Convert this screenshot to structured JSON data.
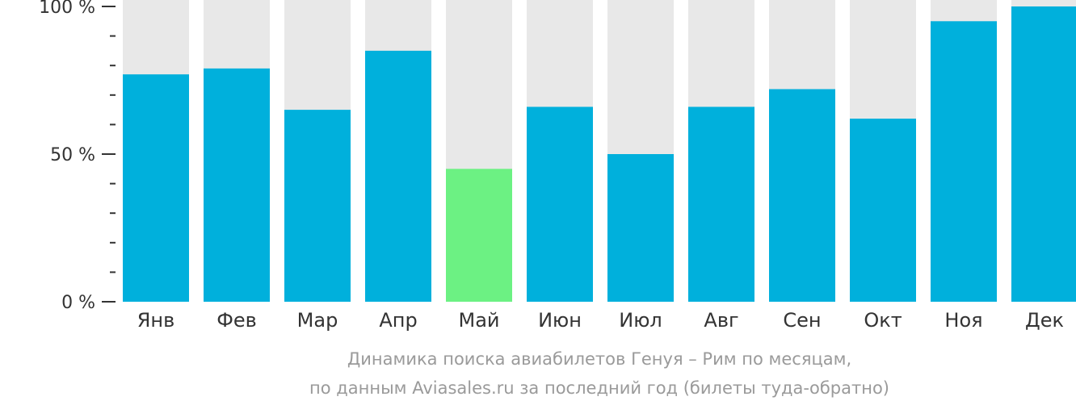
{
  "chart_data": {
    "type": "bar",
    "categories": [
      "Янв",
      "Фев",
      "Мар",
      "Апр",
      "Май",
      "Июн",
      "Июл",
      "Авг",
      "Сен",
      "Окт",
      "Ноя",
      "Дек"
    ],
    "values": [
      77,
      79,
      65,
      85,
      45,
      66,
      50,
      66,
      72,
      62,
      95,
      100
    ],
    "ylim": [
      0,
      100
    ],
    "yticks": [
      {
        "value": 100,
        "label": "100 %"
      },
      {
        "value": 50,
        "label": "50 %"
      },
      {
        "value": 0,
        "label": "0 %"
      }
    ],
    "minor_tick_step": 10,
    "highlight_index": 4,
    "caption_line1": "Динамика поиска авиабилетов Генуя – Рим по месяцам,",
    "caption_line2": "по данным Aviasales.ru за последний год (билеты туда-обратно)",
    "colors": {
      "bar": "#00b0dc",
      "highlight": "#6cf183",
      "background_bar": "#e8e8e8",
      "axis": "#333333",
      "label": "#333333",
      "caption": "#9a9a9a"
    }
  }
}
